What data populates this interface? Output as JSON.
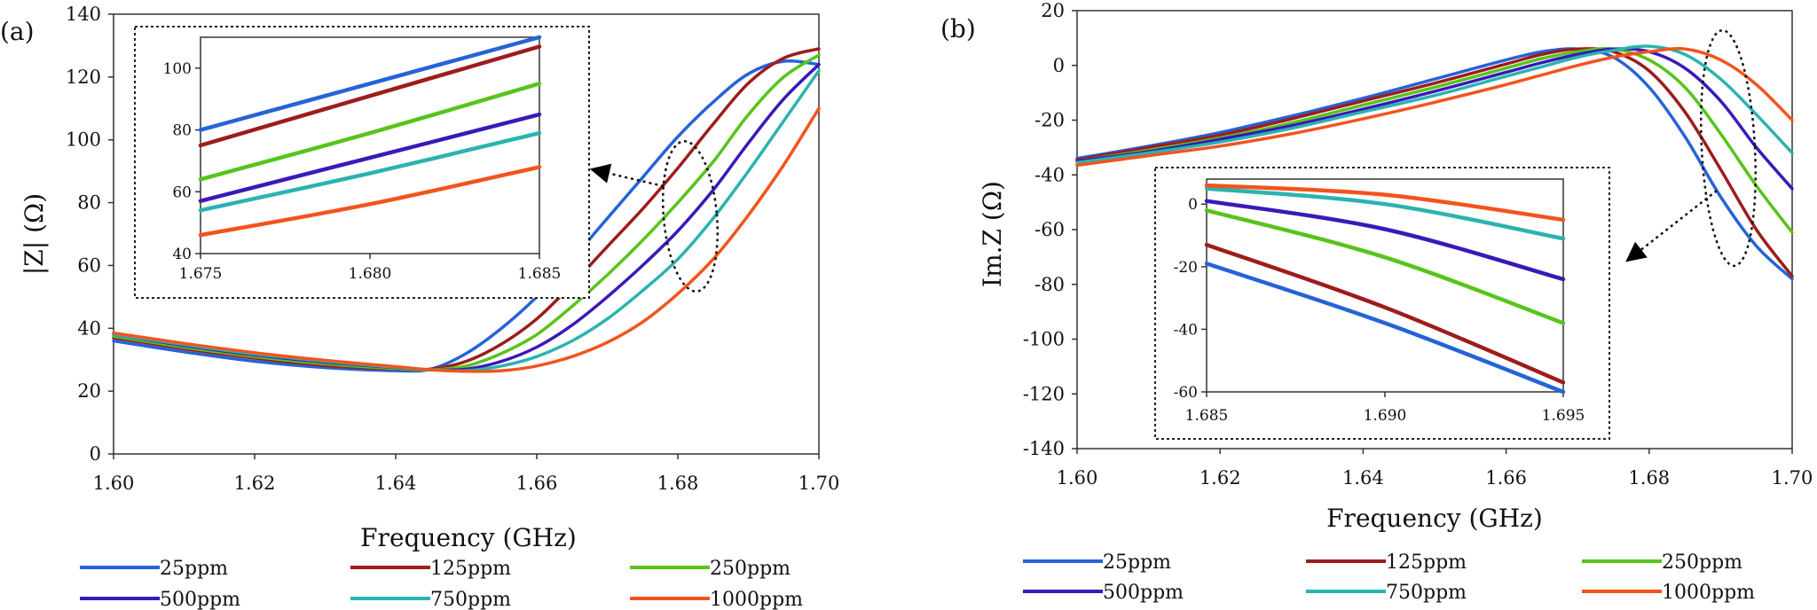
{
  "figure": {
    "panel_a_label": "(a)",
    "panel_b_label": "(b)"
  },
  "colors": {
    "25ppm": "#2563d9",
    "125ppm": "#9e1c1c",
    "250ppm": "#57c41c",
    "500ppm": "#3b19b8",
    "750ppm": "#2bb3b0",
    "1000ppm": "#f2541e"
  },
  "chart_data": [
    {
      "id": "a",
      "type": "line",
      "title": "",
      "xlabel": "Frequency (GHz)",
      "ylabel": "|Z| (Ω)",
      "xlim": [
        1.6,
        1.7
      ],
      "ylim": [
        0,
        140
      ],
      "xticks": [
        1.6,
        1.62,
        1.64,
        1.66,
        1.68,
        1.7
      ],
      "xtick_labels": [
        "1.60",
        "1.62",
        "1.64",
        "1.66",
        "1.68",
        "1.70"
      ],
      "yticks": [
        0,
        20,
        40,
        60,
        80,
        100,
        120,
        140
      ],
      "ytick_labels": [
        "0",
        "20",
        "40",
        "60",
        "80",
        "100",
        "120",
        "140"
      ],
      "grid": false,
      "legend_position": "bottom",
      "annotation": "dotted ellipse near 1.68 GHz with arrow pointing to inset",
      "x": [
        1.6,
        1.61,
        1.62,
        1.63,
        1.64,
        1.645,
        1.65,
        1.655,
        1.66,
        1.665,
        1.67,
        1.675,
        1.68,
        1.685,
        1.69,
        1.695,
        1.7
      ],
      "series": [
        {
          "name": "25ppm",
          "values": [
            36,
            32.5,
            29.5,
            27.5,
            26.5,
            27,
            32,
            40,
            50,
            62,
            75,
            88,
            101,
            112,
            121,
            125,
            124
          ]
        },
        {
          "name": "125ppm",
          "values": [
            37,
            33.5,
            30.5,
            28.2,
            27,
            27,
            29.5,
            35,
            43,
            54,
            66,
            78,
            91,
            105,
            118,
            126,
            129
          ]
        },
        {
          "name": "250ppm",
          "values": [
            37.5,
            34,
            31,
            28.7,
            27.2,
            26.8,
            28,
            32,
            38,
            47,
            57,
            68,
            80,
            93,
            108,
            120,
            127
          ]
        },
        {
          "name": "500ppm",
          "values": [
            38,
            34.5,
            31.5,
            29.2,
            27.5,
            26.8,
            27,
            29.5,
            34,
            41,
            50,
            60,
            71,
            84,
            99,
            113,
            124
          ]
        },
        {
          "name": "750ppm",
          "values": [
            38,
            34.8,
            31.8,
            29.5,
            27.6,
            26.8,
            26.5,
            28,
            31,
            36,
            43,
            52,
            62,
            75,
            90,
            106,
            122
          ]
        },
        {
          "name": "1000ppm",
          "values": [
            38.5,
            35.2,
            32.2,
            29.8,
            27.8,
            26.8,
            26.3,
            26.5,
            28,
            31,
            35.5,
            42,
            51,
            62,
            76,
            92,
            110
          ]
        }
      ],
      "inset": {
        "xlim": [
          1.675,
          1.685
        ],
        "ylim": [
          40,
          110
        ],
        "xticks": [
          1.675,
          1.68,
          1.685
        ],
        "xtick_labels": [
          "1.675",
          "1.680",
          "1.685"
        ],
        "yticks": [
          40,
          60,
          80,
          100
        ],
        "ytick_labels": [
          "40",
          "60",
          "80",
          "100"
        ],
        "x": [
          1.675,
          1.68,
          1.685
        ],
        "series": [
          {
            "name": "25ppm",
            "values": [
              80,
              95,
              110
            ]
          },
          {
            "name": "125ppm",
            "values": [
              75,
              91,
              107
            ]
          },
          {
            "name": "250ppm",
            "values": [
              64,
              79,
              95
            ]
          },
          {
            "name": "500ppm",
            "values": [
              57,
              71,
              85
            ]
          },
          {
            "name": "750ppm",
            "values": [
              54,
              66,
              79
            ]
          },
          {
            "name": "1000ppm",
            "values": [
              46,
              56,
              68
            ]
          }
        ]
      }
    },
    {
      "id": "b",
      "type": "line",
      "title": "",
      "xlabel": "Frequency (GHz)",
      "ylabel": "Im.Z (Ω)",
      "xlim": [
        1.6,
        1.7
      ],
      "ylim": [
        -140,
        20
      ],
      "xticks": [
        1.6,
        1.62,
        1.64,
        1.66,
        1.68,
        1.7
      ],
      "xtick_labels": [
        "1.60",
        "1.62",
        "1.64",
        "1.66",
        "1.68",
        "1.70"
      ],
      "yticks": [
        -140,
        -120,
        -100,
        -80,
        -60,
        -40,
        -20,
        0,
        20
      ],
      "ytick_labels": [
        "-140",
        "-120",
        "-100",
        "-80",
        "-60",
        "-40",
        "-20",
        "0",
        "20"
      ],
      "grid": false,
      "legend_position": "bottom",
      "annotation": "dotted ellipse near 1.69 GHz with arrow pointing to inset",
      "x": [
        1.6,
        1.61,
        1.62,
        1.63,
        1.64,
        1.65,
        1.66,
        1.665,
        1.67,
        1.675,
        1.68,
        1.685,
        1.69,
        1.695,
        1.7
      ],
      "series": [
        {
          "name": "25ppm",
          "values": [
            -34,
            -29.5,
            -24.5,
            -18.5,
            -12,
            -5,
            2,
            5,
            6,
            3,
            -8,
            -26,
            -48,
            -66,
            -78
          ]
        },
        {
          "name": "125ppm",
          "values": [
            -34.5,
            -30,
            -25.5,
            -19.5,
            -13,
            -6.5,
            0.5,
            4,
            6,
            5,
            -2,
            -17,
            -38,
            -60,
            -77
          ]
        },
        {
          "name": "250ppm",
          "values": [
            -35,
            -31,
            -26.5,
            -21,
            -14.5,
            -8,
            -1,
            2.5,
            5,
            6,
            2,
            -8,
            -25,
            -44,
            -61
          ]
        },
        {
          "name": "500ppm",
          "values": [
            -35,
            -31.5,
            -27,
            -22,
            -16,
            -9.5,
            -2.5,
            1,
            4,
            6,
            5,
            -1,
            -13,
            -30,
            -45
          ]
        },
        {
          "name": "750ppm",
          "values": [
            -35.5,
            -32,
            -28,
            -23,
            -17,
            -11,
            -4,
            -0.5,
            3,
            5.5,
            7,
            4,
            -5,
            -18,
            -32
          ]
        },
        {
          "name": "1000ppm",
          "values": [
            -36.5,
            -33,
            -29.5,
            -25,
            -19.5,
            -13.5,
            -7,
            -3.5,
            0,
            3,
            5,
            6,
            2,
            -7,
            -20
          ]
        }
      ],
      "inset": {
        "xlim": [
          1.685,
          1.695
        ],
        "ylim": [
          -60,
          8
        ],
        "xticks": [
          1.685,
          1.69,
          1.695
        ],
        "xtick_labels": [
          "1.685",
          "1.690",
          "1.695"
        ],
        "yticks": [
          -60,
          -40,
          -20,
          0
        ],
        "ytick_labels": [
          "-60",
          "-40",
          "-20",
          "0"
        ],
        "x": [
          1.685,
          1.69,
          1.695
        ],
        "series": [
          {
            "name": "25ppm",
            "values": [
              -19,
              -38,
              -60
            ]
          },
          {
            "name": "125ppm",
            "values": [
              -13,
              -33,
              -57
            ]
          },
          {
            "name": "250ppm",
            "values": [
              -2,
              -17,
              -38
            ]
          },
          {
            "name": "500ppm",
            "values": [
              1,
              -8,
              -24
            ]
          },
          {
            "name": "750ppm",
            "values": [
              5,
              0,
              -11
            ]
          },
          {
            "name": "1000ppm",
            "values": [
              6,
              3,
              -5
            ]
          }
        ]
      }
    }
  ]
}
